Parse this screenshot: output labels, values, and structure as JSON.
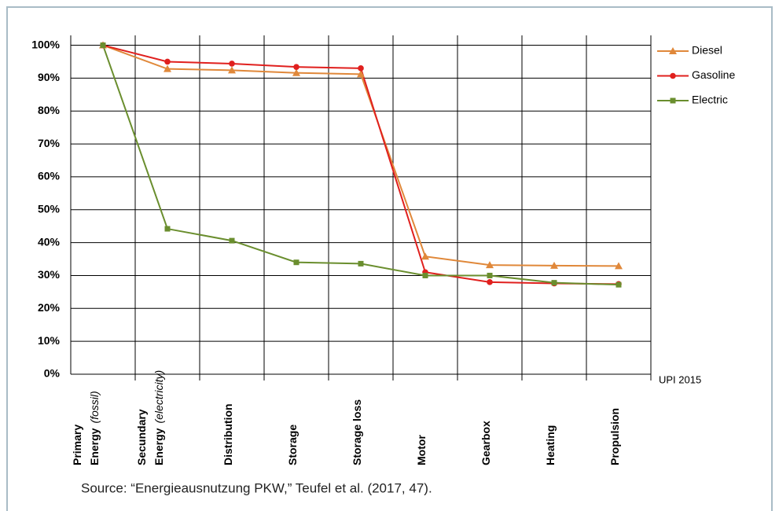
{
  "chart_data": {
    "type": "line",
    "categories": [
      [
        "Primary",
        "Energy"
      ],
      [
        "Secundary",
        "Energy"
      ],
      [
        "Distribution"
      ],
      [
        "Storage"
      ],
      [
        "Storage loss"
      ],
      [
        "Motor"
      ],
      [
        "Gearbox"
      ],
      [
        "Heating"
      ],
      [
        "Propulsion"
      ]
    ],
    "category_notes": [
      "(fossil)",
      "(electricity)",
      null,
      null,
      null,
      null,
      null,
      null,
      null
    ],
    "series": [
      {
        "name": "Diesel",
        "color": "#e0883a",
        "marker": "triangle",
        "values": [
          100,
          92.8,
          92.4,
          91.6,
          91.2,
          35.8,
          33.2,
          33.0,
          32.9
        ]
      },
      {
        "name": "Gasoline",
        "color": "#e0201e",
        "marker": "circle",
        "values": [
          100,
          95.0,
          94.4,
          93.4,
          93.0,
          31.0,
          28.0,
          27.6,
          27.4
        ]
      },
      {
        "name": "Electric",
        "color": "#6a8e2e",
        "marker": "square",
        "values": [
          100,
          44.2,
          40.6,
          34.0,
          33.6,
          30.0,
          30.0,
          27.8,
          27.2
        ]
      }
    ],
    "ylim": [
      0,
      103
    ],
    "yticks": [
      {
        "value": 0,
        "label": "0%"
      },
      {
        "value": 10,
        "label": "10%"
      },
      {
        "value": 20,
        "label": "20%"
      },
      {
        "value": 30,
        "label": "30%"
      },
      {
        "value": 40,
        "label": "40%"
      },
      {
        "value": 50,
        "label": "50%"
      },
      {
        "value": 60,
        "label": "60%"
      },
      {
        "value": 70,
        "label": "70%"
      },
      {
        "value": 80,
        "label": "80%"
      },
      {
        "value": 90,
        "label": "90%"
      },
      {
        "value": 100,
        "label": "100%"
      }
    ],
    "grid": true,
    "legend": "right",
    "annotation": "UPI 2015",
    "source": "Source: “Energieausnutzung PKW,” Teufel et al. (2017, 47)."
  }
}
